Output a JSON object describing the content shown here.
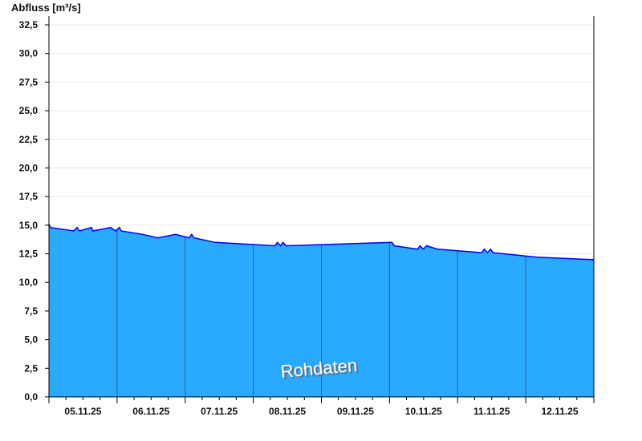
{
  "chart_data": {
    "type": "area",
    "title": "",
    "ylabel": "Abfluss [m³/s]",
    "xlabel": "",
    "ylim": [
      0,
      32.5
    ],
    "xlim": [
      "2025-11-05T00:00",
      "2025-11-12T23:59"
    ],
    "y_ticks": [
      "0,0",
      "2,5",
      "5,0",
      "7,5",
      "10,0",
      "12,5",
      "15,0",
      "17,5",
      "20,0",
      "22,5",
      "25,0",
      "27,5",
      "30,0",
      "32,5"
    ],
    "x_tick_labels": [
      "05.11.25",
      "06.11.25",
      "07.11.25",
      "08.11.25",
      "09.11.25",
      "10.11.25",
      "11.11.25",
      "12.11.25"
    ],
    "grid": true,
    "watermark": "Rohdaten",
    "colors": {
      "fill": "#29A9FF",
      "line": "#0000FF",
      "day_lines": "#2F5F8A",
      "grid": "#E6E6E6"
    },
    "series": [
      {
        "points": [
          [
            "2025-11-05T00:00",
            15.1
          ],
          [
            "2025-11-05T00:34",
            14.8
          ],
          [
            "2025-11-05T08:45",
            14.5
          ],
          [
            "2025-11-05T09:53",
            14.8
          ],
          [
            "2025-11-05T10:44",
            14.5
          ],
          [
            "2025-11-05T15:00",
            14.8
          ],
          [
            "2025-11-05T15:32",
            14.5
          ],
          [
            "2025-11-05T21:44",
            14.8
          ],
          [
            "2025-11-05T23:26",
            14.5
          ],
          [
            "2025-11-06T00:51",
            14.8
          ],
          [
            "2025-11-06T01:25",
            14.5
          ],
          [
            "2025-11-06T09:02",
            14.2
          ],
          [
            "2025-11-06T14:24",
            13.9
          ],
          [
            "2025-11-06T20:37",
            14.2
          ],
          [
            "2025-11-07T01:25",
            13.9
          ],
          [
            "2025-11-07T02:16",
            14.2
          ],
          [
            "2025-11-07T03:07",
            13.9
          ],
          [
            "2025-11-07T10:28",
            13.5
          ],
          [
            "2025-11-08T07:38",
            13.2
          ],
          [
            "2025-11-08T08:29",
            13.5
          ],
          [
            "2025-11-08T09:37",
            13.2
          ],
          [
            "2025-11-08T10:28",
            13.5
          ],
          [
            "2025-11-08T11:36",
            13.2
          ],
          [
            "2025-11-10T00:52",
            13.5
          ],
          [
            "2025-11-10T01:43",
            13.2
          ],
          [
            "2025-11-10T09:55",
            12.9
          ],
          [
            "2025-11-10T10:46",
            13.2
          ],
          [
            "2025-11-10T11:54",
            12.9
          ],
          [
            "2025-11-10T13:02",
            13.2
          ],
          [
            "2025-11-10T17:00",
            12.9
          ],
          [
            "2025-11-11T08:30",
            12.6
          ],
          [
            "2025-11-11T09:21",
            12.9
          ],
          [
            "2025-11-11T10:29",
            12.6
          ],
          [
            "2025-11-11T11:37",
            12.9
          ],
          [
            "2025-11-11T12:28",
            12.6
          ],
          [
            "2025-11-12T04:00",
            12.2
          ],
          [
            "2025-11-12T23:11",
            12.0
          ],
          [
            "2025-11-12T23:59",
            12.0
          ]
        ]
      }
    ]
  }
}
